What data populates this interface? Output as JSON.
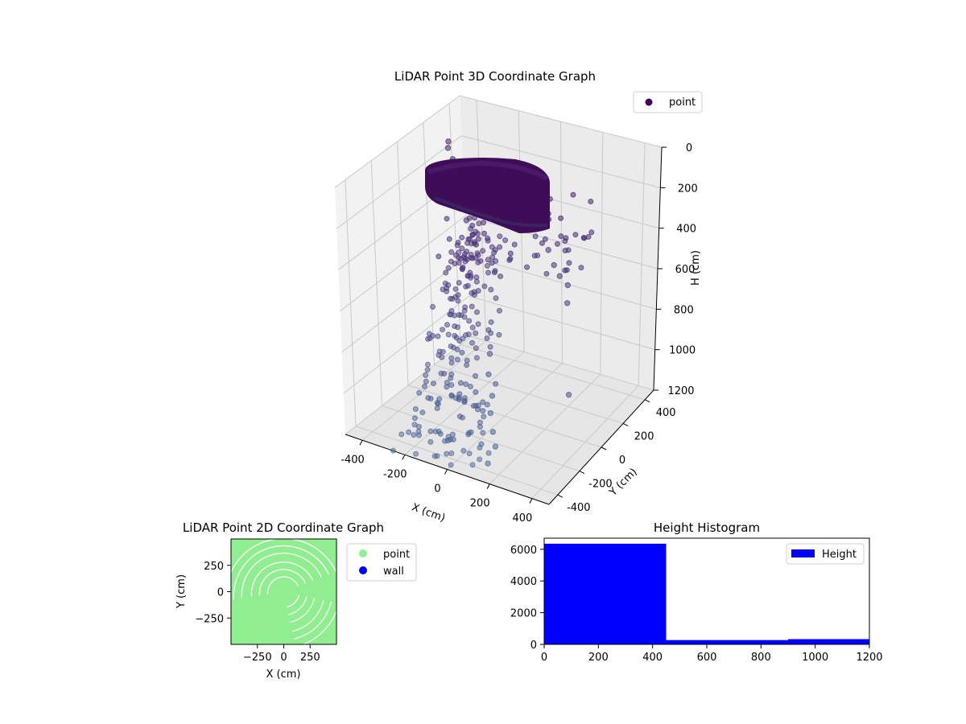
{
  "chart_data": [
    {
      "type": "scatter3d",
      "title": "LiDAR Point 3D Coordinate Graph",
      "xlabel": "X (cm)",
      "ylabel": "Y (cm)",
      "zlabel": "H (cm)",
      "xticks": [
        -400,
        -200,
        0,
        200,
        400
      ],
      "yticks": [
        -400,
        -200,
        0,
        200,
        400
      ],
      "zticks": [
        0,
        200,
        400,
        600,
        800,
        1000,
        1200
      ],
      "xlim": [
        -480,
        480
      ],
      "ylim": [
        -480,
        480
      ],
      "zlim": [
        0,
        1200
      ],
      "z_axis_inverted": true,
      "colormap": "viridis",
      "legend": {
        "entries": [
          "point"
        ],
        "placement": "top-right"
      },
      "grid": true,
      "series": [
        {
          "name": "point",
          "description_points": [
            {
              "x": -480,
              "y": 380,
              "z": 180
            },
            {
              "x": -470,
              "y": 360,
              "z": 200
            },
            {
              "x": -430,
              "y": 330,
              "z": 230
            },
            {
              "x": -420,
              "y": 300,
              "z": 250
            },
            {
              "x": -400,
              "y": 280,
              "z": 270
            },
            {
              "x": -380,
              "y": 260,
              "z": 290
            },
            {
              "x": -350,
              "y": 240,
              "z": 320
            },
            {
              "x": -300,
              "y": 200,
              "z": 360
            },
            {
              "x": -260,
              "y": 150,
              "z": 400
            },
            {
              "x": -200,
              "y": 100,
              "z": 430
            },
            {
              "x": 150,
              "y": 120,
              "z": 420
            },
            {
              "x": 200,
              "y": 80,
              "z": 460
            },
            {
              "x": 250,
              "y": 40,
              "z": 480
            },
            {
              "x": 300,
              "y": 20,
              "z": 500
            },
            {
              "x": 320,
              "y": -20,
              "z": 560
            },
            {
              "x": 400,
              "y": -150,
              "z": 900
            },
            {
              "x": -50,
              "y": -30,
              "z": 900
            },
            {
              "x": -40,
              "y": -60,
              "z": 980
            },
            {
              "x": 0,
              "y": -100,
              "z": 1050
            },
            {
              "x": 20,
              "y": -150,
              "z": 1100
            },
            {
              "x": 60,
              "y": -200,
              "z": 1150
            },
            {
              "x": 100,
              "y": -250,
              "z": 1180
            },
            {
              "x": -100,
              "y": -300,
              "z": 1190
            },
            {
              "x": 120,
              "y": -350,
              "z": 1200
            }
          ]
        }
      ]
    },
    {
      "type": "scatter",
      "title": "LiDAR Point 2D Coordinate Graph",
      "xlabel": "X (cm)",
      "ylabel": "Y (cm)",
      "xticks": [
        -250,
        0,
        250
      ],
      "yticks": [
        250,
        0,
        -250
      ],
      "xlim": [
        -500,
        500
      ],
      "ylim": [
        -500,
        500
      ],
      "legend": {
        "entries": [
          "point",
          "wall"
        ],
        "placement": "right-outside"
      },
      "series": [
        {
          "name": "point",
          "color": "#90ee90",
          "extent": [
            -500,
            500
          ]
        },
        {
          "name": "wall",
          "color": "#0000ff"
        }
      ]
    },
    {
      "type": "bar",
      "title": "Height Histogram",
      "xticks": [
        0,
        200,
        400,
        600,
        800,
        1000,
        1200
      ],
      "yticks": [
        0,
        2000,
        4000,
        6000
      ],
      "xlim": [
        0,
        1200
      ],
      "ylim": [
        0,
        6700
      ],
      "legend": {
        "entries": [
          "Height"
        ],
        "placement": "top-right"
      },
      "series": [
        {
          "name": "Height",
          "color": "#0000ff",
          "bins": [
            {
              "from": 0,
              "to": 450,
              "count": 6350
            },
            {
              "from": 450,
              "to": 900,
              "count": 270
            },
            {
              "from": 900,
              "to": 1200,
              "count": 330
            }
          ]
        }
      ]
    }
  ]
}
